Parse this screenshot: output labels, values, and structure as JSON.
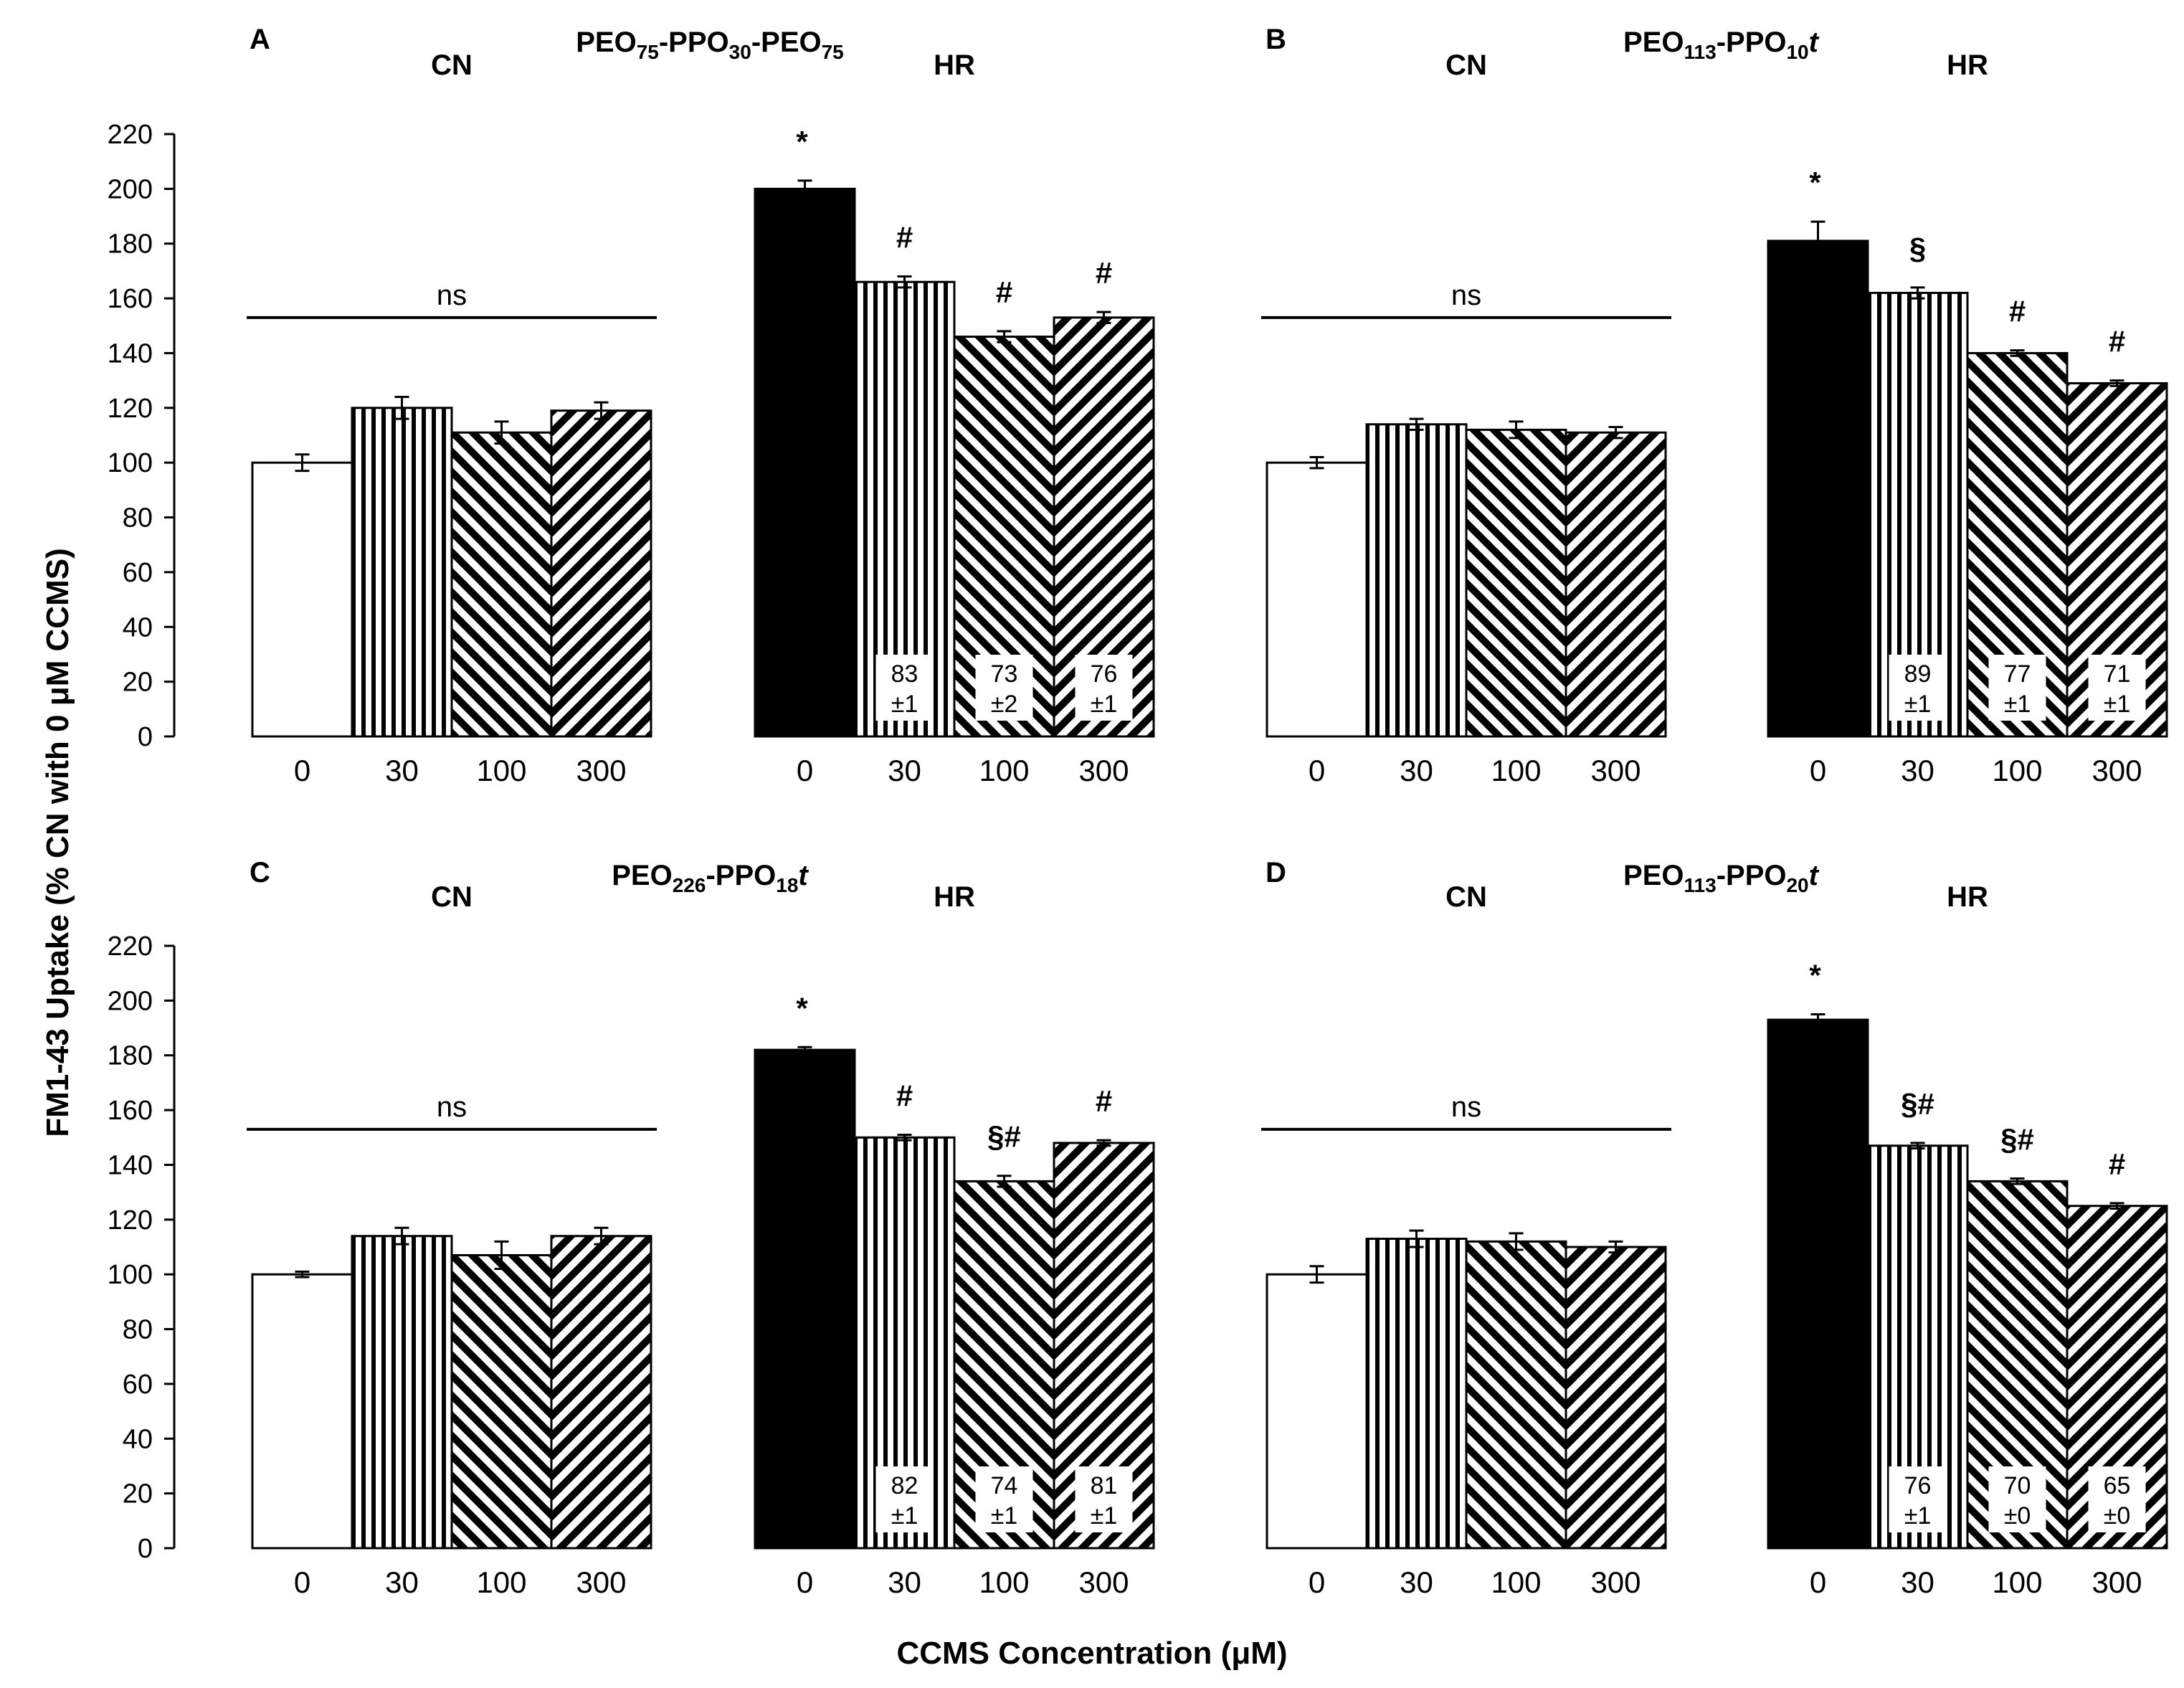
{
  "figure": {
    "ylabel": "FM1-43 Uptake  (% CN with 0 μM CCMS)",
    "xlabel": "CCMS Concentration (μM)"
  },
  "chart_data": [
    {
      "panel": "A",
      "title": {
        "base1": "PEO",
        "sub1": "75",
        "mid": "-PPO",
        "sub2": "30",
        "tail": "-PEO",
        "sub3": "75",
        "italic": ""
      },
      "type": "bar",
      "ylim": [
        0,
        220
      ],
      "yticks": [
        0,
        20,
        40,
        60,
        80,
        100,
        120,
        140,
        160,
        180,
        200,
        220
      ],
      "groups": [
        {
          "name": "CN",
          "categories": [
            "0",
            "30",
            "100",
            "300"
          ],
          "values": [
            100,
            120,
            111,
            119
          ],
          "errors": [
            3,
            4,
            4,
            3
          ],
          "annotations": [
            "",
            "",
            "",
            ""
          ],
          "boxes": [
            null,
            null,
            null,
            null
          ],
          "bracket": {
            "label": "ns",
            "y": 153
          }
        },
        {
          "name": "HR",
          "categories": [
            "0",
            "30",
            "100",
            "300"
          ],
          "values": [
            200,
            166,
            146,
            153
          ],
          "errors": [
            3,
            2,
            2,
            2
          ],
          "annotations": [
            "*",
            "#",
            "#",
            "#"
          ],
          "boxes": [
            null,
            [
              "83",
              "±1"
            ],
            [
              "73",
              "±2"
            ],
            [
              "76",
              "±1"
            ]
          ],
          "bracket": null
        }
      ]
    },
    {
      "panel": "B",
      "title": {
        "base1": "PEO",
        "sub1": "113",
        "mid": "-PPO",
        "sub2": "10",
        "tail": "",
        "sub3": "",
        "italic": "t"
      },
      "type": "bar",
      "ylim": [
        0,
        220
      ],
      "yticks": [
        0,
        20,
        40,
        60,
        80,
        100,
        120,
        140,
        160,
        180,
        200,
        220
      ],
      "groups": [
        {
          "name": "CN",
          "categories": [
            "0",
            "30",
            "100",
            "300"
          ],
          "values": [
            100,
            114,
            112,
            111
          ],
          "errors": [
            2,
            2,
            3,
            2
          ],
          "annotations": [
            "",
            "",
            "",
            ""
          ],
          "boxes": [
            null,
            null,
            null,
            null
          ],
          "bracket": {
            "label": "ns",
            "y": 153
          }
        },
        {
          "name": "HR",
          "categories": [
            "0",
            "30",
            "100",
            "300"
          ],
          "values": [
            181,
            162,
            140,
            129
          ],
          "errors": [
            7,
            2,
            1,
            1
          ],
          "annotations": [
            "*",
            "§",
            "#",
            "#"
          ],
          "boxes": [
            null,
            [
              "89",
              "±1"
            ],
            [
              "77",
              "±1"
            ],
            [
              "71",
              "±1"
            ]
          ],
          "bracket": null
        }
      ]
    },
    {
      "panel": "C",
      "title": {
        "base1": "PEO",
        "sub1": "226",
        "mid": "-PPO",
        "sub2": "18",
        "tail": "",
        "sub3": "",
        "italic": "t"
      },
      "type": "bar",
      "ylim": [
        0,
        220
      ],
      "yticks": [
        0,
        20,
        40,
        60,
        80,
        100,
        120,
        140,
        160,
        180,
        200,
        220
      ],
      "groups": [
        {
          "name": "CN",
          "categories": [
            "0",
            "30",
            "100",
            "300"
          ],
          "values": [
            100,
            114,
            107,
            114
          ],
          "errors": [
            1,
            3,
            5,
            3
          ],
          "annotations": [
            "",
            "",
            "",
            ""
          ],
          "boxes": [
            null,
            null,
            null,
            null
          ],
          "bracket": {
            "label": "ns",
            "y": 153
          }
        },
        {
          "name": "HR",
          "categories": [
            "0",
            "30",
            "100",
            "300"
          ],
          "values": [
            182,
            150,
            134,
            148
          ],
          "errors": [
            1,
            1,
            2,
            1
          ],
          "annotations": [
            "*",
            "#",
            "§#",
            "#"
          ],
          "boxes": [
            null,
            [
              "82",
              "±1"
            ],
            [
              "74",
              "±1"
            ],
            [
              "81",
              "±1"
            ]
          ],
          "bracket": null
        }
      ]
    },
    {
      "panel": "D",
      "title": {
        "base1": "PEO",
        "sub1": "113",
        "mid": "-PPO",
        "sub2": "20",
        "tail": "",
        "sub3": "",
        "italic": "t"
      },
      "type": "bar",
      "ylim": [
        0,
        220
      ],
      "yticks": [
        0,
        20,
        40,
        60,
        80,
        100,
        120,
        140,
        160,
        180,
        200,
        220
      ],
      "groups": [
        {
          "name": "CN",
          "categories": [
            "0",
            "30",
            "100",
            "300"
          ],
          "values": [
            100,
            113,
            112,
            110
          ],
          "errors": [
            3,
            3,
            3,
            2
          ],
          "annotations": [
            "",
            "",
            "",
            ""
          ],
          "boxes": [
            null,
            null,
            null,
            null
          ],
          "bracket": {
            "label": "ns",
            "y": 153
          }
        },
        {
          "name": "HR",
          "categories": [
            "0",
            "30",
            "100",
            "300"
          ],
          "values": [
            193,
            147,
            134,
            125
          ],
          "errors": [
            2,
            1,
            1,
            1
          ],
          "annotations": [
            "*",
            "§#",
            "§#",
            "#"
          ],
          "boxes": [
            null,
            [
              "76",
              "±1"
            ],
            [
              "70",
              "±0"
            ],
            [
              "65",
              "±0"
            ]
          ],
          "bracket": null
        }
      ]
    }
  ]
}
